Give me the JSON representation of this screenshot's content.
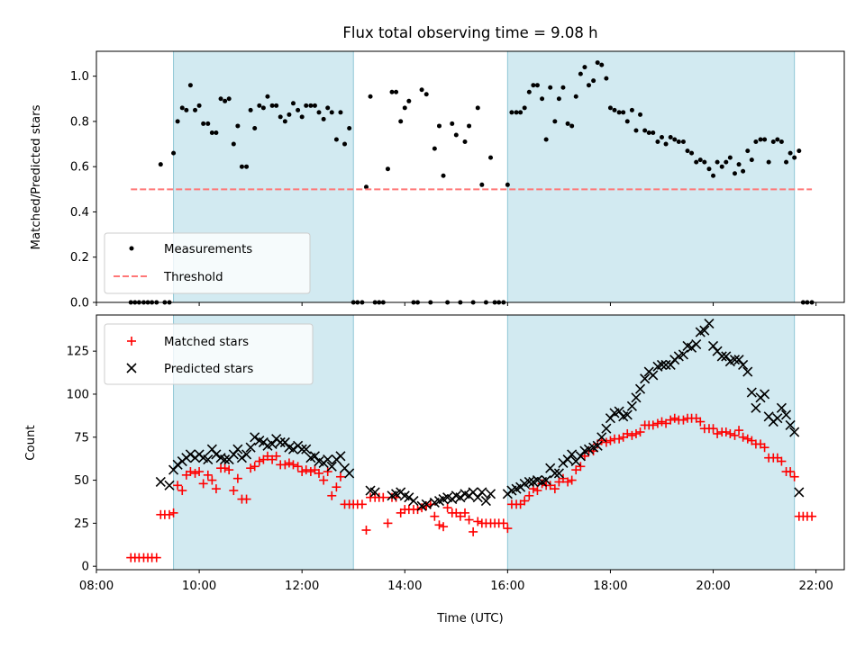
{
  "chart_data": [
    {
      "type": "scatter",
      "title": "Flux total observing time = 9.08 h",
      "xlabel": "",
      "ylabel": "Matched/Predicted stars",
      "xlim": [
        8.0,
        22.55
      ],
      "ylim": [
        0.0,
        1.11
      ],
      "yticks": [
        0.0,
        0.2,
        0.4,
        0.6,
        0.8,
        1.0
      ],
      "ytick_labels": [
        "0.0",
        "0.2",
        "0.4",
        "0.6",
        "0.8",
        "1.0"
      ],
      "grid": false,
      "legend_position": "lower-left",
      "shaded_intervals": [
        [
          9.5,
          13.0
        ],
        [
          16.0,
          21.58
        ]
      ],
      "shade_color": "#add8e6",
      "series": [
        {
          "name": "Measurements",
          "kind": "points",
          "color": "#000000",
          "x": [
            8.67,
            8.75,
            8.83,
            8.92,
            9.0,
            9.08,
            9.17,
            9.25,
            9.33,
            9.42,
            9.5,
            9.58,
            9.67,
            9.75,
            9.83,
            9.92,
            10.0,
            10.08,
            10.17,
            10.25,
            10.33,
            10.42,
            10.5,
            10.58,
            10.67,
            10.75,
            10.83,
            10.92,
            11.0,
            11.08,
            11.17,
            11.25,
            11.33,
            11.42,
            11.5,
            11.58,
            11.67,
            11.75,
            11.83,
            11.92,
            12.0,
            12.08,
            12.17,
            12.25,
            12.33,
            12.42,
            12.5,
            12.58,
            12.67,
            12.75,
            12.83,
            12.92,
            13.0,
            13.08,
            13.17,
            13.25,
            13.33,
            13.42,
            13.5,
            13.58,
            13.67,
            13.75,
            13.83,
            13.92,
            14.0,
            14.08,
            14.17,
            14.25,
            14.33,
            14.42,
            14.5,
            14.58,
            14.67,
            14.75,
            14.83,
            14.92,
            15.0,
            15.08,
            15.17,
            15.25,
            15.33,
            15.42,
            15.5,
            15.58,
            15.67,
            15.75,
            15.83,
            15.92,
            16.0,
            16.08,
            16.17,
            16.25,
            16.33,
            16.42,
            16.5,
            16.58,
            16.67,
            16.75,
            16.83,
            16.92,
            17.0,
            17.08,
            17.17,
            17.25,
            17.33,
            17.42,
            17.5,
            17.58,
            17.67,
            17.75,
            17.83,
            17.92,
            18.0,
            18.08,
            18.17,
            18.25,
            18.33,
            18.42,
            18.5,
            18.58,
            18.67,
            18.75,
            18.83,
            18.92,
            19.0,
            19.08,
            19.17,
            19.25,
            19.33,
            19.42,
            19.5,
            19.58,
            19.67,
            19.75,
            19.83,
            19.92,
            20.0,
            20.08,
            20.17,
            20.25,
            20.33,
            20.42,
            20.5,
            20.58,
            20.67,
            20.75,
            20.83,
            20.92,
            21.0,
            21.08,
            21.17,
            21.25,
            21.33,
            21.42,
            21.5,
            21.58,
            21.67,
            21.75,
            21.83,
            21.92
          ],
          "y": [
            0.0,
            0.0,
            0.0,
            0.0,
            0.0,
            0.0,
            0.0,
            0.61,
            0.0,
            0.0,
            0.66,
            0.8,
            0.86,
            0.85,
            0.96,
            0.85,
            0.87,
            0.79,
            0.79,
            0.75,
            0.75,
            0.9,
            0.89,
            0.9,
            0.7,
            0.78,
            0.6,
            0.6,
            0.85,
            0.77,
            0.87,
            0.86,
            0.91,
            0.87,
            0.87,
            0.82,
            0.8,
            0.83,
            0.88,
            0.85,
            0.82,
            0.87,
            0.87,
            0.87,
            0.84,
            0.81,
            0.86,
            0.84,
            0.72,
            0.84,
            0.7,
            0.77,
            0.0,
            0.0,
            0.0,
            0.51,
            0.91,
            0.0,
            0.0,
            0.0,
            0.59,
            0.93,
            0.93,
            0.8,
            0.86,
            0.89,
            0.0,
            0.0,
            0.94,
            0.92,
            0.0,
            0.68,
            0.78,
            0.56,
            0.0,
            0.79,
            0.74,
            0.0,
            0.71,
            0.78,
            0.0,
            0.86,
            0.52,
            0.0,
            0.64,
            0.0,
            0.0,
            0.0,
            0.52,
            0.84,
            0.84,
            0.84,
            0.86,
            0.93,
            0.96,
            0.96,
            0.9,
            0.72,
            0.95,
            0.8,
            0.9,
            0.95,
            0.79,
            0.78,
            0.91,
            1.01,
            1.04,
            0.96,
            0.98,
            1.06,
            1.05,
            0.99,
            0.86,
            0.85,
            0.84,
            0.84,
            0.8,
            0.85,
            0.76,
            0.83,
            0.76,
            0.75,
            0.75,
            0.71,
            0.73,
            0.7,
            0.73,
            0.72,
            0.71,
            0.71,
            0.67,
            0.66,
            0.62,
            0.63,
            0.62,
            0.59,
            0.56,
            0.62,
            0.6,
            0.62,
            0.64,
            0.57,
            0.61,
            0.58,
            0.67,
            0.63,
            0.71,
            0.72,
            0.72,
            0.62,
            0.71,
            0.72,
            0.71,
            0.62,
            0.66,
            0.64,
            0.67,
            0.0,
            0.0,
            0.0
          ]
        },
        {
          "name": "Threshold",
          "kind": "dashed-line",
          "color": "#ff7777",
          "x": [
            8.67,
            21.92
          ],
          "y": [
            0.5,
            0.5
          ]
        }
      ]
    },
    {
      "type": "scatter",
      "title": "",
      "xlabel": "Time (UTC)",
      "ylabel": "Count",
      "xlim": [
        8.0,
        22.55
      ],
      "ylim": [
        -2,
        146
      ],
      "xticks": [
        8,
        10,
        12,
        14,
        16,
        18,
        20,
        22
      ],
      "xtick_labels": [
        "08:00",
        "10:00",
        "12:00",
        "14:00",
        "16:00",
        "18:00",
        "20:00",
        "22:00"
      ],
      "yticks": [
        0,
        25,
        50,
        75,
        100,
        125
      ],
      "ytick_labels": [
        "0",
        "25",
        "50",
        "75",
        "100",
        "125"
      ],
      "grid": false,
      "legend_position": "upper-left",
      "shaded_intervals": [
        [
          9.5,
          13.0
        ],
        [
          16.0,
          21.58
        ]
      ],
      "shade_color": "#add8e6",
      "series": [
        {
          "name": "Matched stars",
          "kind": "plus",
          "color": "#ff0000",
          "x": [
            8.67,
            8.75,
            8.83,
            8.92,
            9.0,
            9.08,
            9.17,
            9.25,
            9.33,
            9.42,
            9.5,
            9.58,
            9.67,
            9.75,
            9.83,
            9.92,
            10.0,
            10.08,
            10.17,
            10.25,
            10.33,
            10.42,
            10.5,
            10.58,
            10.67,
            10.75,
            10.83,
            10.92,
            11.0,
            11.08,
            11.17,
            11.25,
            11.33,
            11.42,
            11.5,
            11.58,
            11.67,
            11.75,
            11.83,
            11.92,
            12.0,
            12.08,
            12.17,
            12.25,
            12.33,
            12.42,
            12.5,
            12.58,
            12.67,
            12.75,
            12.83,
            12.92,
            13.0,
            13.08,
            13.17,
            13.25,
            13.33,
            13.42,
            13.5,
            13.58,
            13.67,
            13.75,
            13.83,
            13.92,
            14.0,
            14.08,
            14.17,
            14.25,
            14.33,
            14.42,
            14.5,
            14.58,
            14.67,
            14.75,
            14.83,
            14.92,
            15.0,
            15.08,
            15.17,
            15.25,
            15.33,
            15.42,
            15.5,
            15.58,
            15.67,
            15.75,
            15.83,
            15.92,
            16.0,
            16.08,
            16.17,
            16.25,
            16.33,
            16.42,
            16.5,
            16.58,
            16.67,
            16.75,
            16.83,
            16.92,
            17.0,
            17.08,
            17.17,
            17.25,
            17.33,
            17.42,
            17.5,
            17.58,
            17.67,
            17.75,
            17.83,
            17.92,
            18.0,
            18.08,
            18.17,
            18.25,
            18.33,
            18.42,
            18.5,
            18.58,
            18.67,
            18.75,
            18.83,
            18.92,
            19.0,
            19.08,
            19.17,
            19.25,
            19.33,
            19.42,
            19.5,
            19.58,
            19.67,
            19.75,
            19.83,
            19.92,
            20.0,
            20.08,
            20.17,
            20.25,
            20.33,
            20.42,
            20.5,
            20.58,
            20.67,
            20.75,
            20.83,
            20.92,
            21.0,
            21.08,
            21.17,
            21.25,
            21.33,
            21.42,
            21.5,
            21.58,
            21.67,
            21.75,
            21.83,
            21.92
          ],
          "y": [
            5,
            5,
            5,
            5,
            5,
            5,
            5,
            30,
            30,
            30,
            31,
            47,
            44,
            53,
            55,
            54,
            55,
            48,
            53,
            50,
            45,
            57,
            57,
            56,
            44,
            51,
            39,
            39,
            57,
            58,
            61,
            62,
            64,
            62,
            64,
            59,
            59,
            60,
            59,
            58,
            55,
            56,
            55,
            56,
            54,
            50,
            55,
            41,
            46,
            52,
            36,
            36,
            36,
            36,
            36,
            21,
            40,
            40,
            40,
            40,
            25,
            40,
            40,
            31,
            33,
            33,
            33,
            33,
            34,
            35,
            36,
            29,
            24,
            23,
            34,
            31,
            31,
            29,
            31,
            27,
            20,
            26,
            25,
            25,
            25,
            25,
            25,
            25,
            22,
            36,
            36,
            36,
            38,
            41,
            45,
            44,
            48,
            47,
            47,
            45,
            49,
            51,
            49,
            50,
            56,
            58,
            64,
            67,
            67,
            71,
            73,
            72,
            73,
            74,
            74,
            75,
            77,
            76,
            77,
            78,
            82,
            82,
            82,
            83,
            84,
            83,
            85,
            86,
            85,
            85,
            86,
            86,
            86,
            84,
            80,
            80,
            80,
            77,
            78,
            78,
            77,
            76,
            79,
            75,
            74,
            73,
            71,
            71,
            69,
            63,
            63,
            63,
            61,
            55,
            55,
            52,
            29,
            29,
            29,
            29
          ]
        },
        {
          "name": "Predicted stars",
          "kind": "x",
          "color": "#000000",
          "x": [
            9.25,
            9.42,
            9.5,
            9.58,
            9.67,
            9.75,
            9.83,
            9.92,
            10.0,
            10.08,
            10.17,
            10.25,
            10.33,
            10.42,
            10.5,
            10.58,
            10.67,
            10.75,
            10.83,
            10.92,
            11.0,
            11.08,
            11.17,
            11.25,
            11.33,
            11.42,
            11.5,
            11.58,
            11.67,
            11.75,
            11.83,
            11.92,
            12.0,
            12.08,
            12.17,
            12.25,
            12.33,
            12.42,
            12.5,
            12.58,
            12.67,
            12.75,
            12.83,
            12.92,
            13.33,
            13.42,
            13.75,
            13.83,
            13.92,
            14.0,
            14.08,
            14.17,
            14.33,
            14.42,
            14.58,
            14.67,
            14.75,
            14.83,
            14.92,
            15.0,
            15.08,
            15.17,
            15.25,
            15.33,
            15.42,
            15.5,
            15.58,
            15.67,
            16.0,
            16.08,
            16.17,
            16.25,
            16.33,
            16.42,
            16.5,
            16.58,
            16.67,
            16.75,
            16.83,
            16.92,
            17.0,
            17.08,
            17.17,
            17.25,
            17.33,
            17.42,
            17.5,
            17.58,
            17.67,
            17.75,
            17.83,
            17.92,
            18.0,
            18.08,
            18.17,
            18.25,
            18.33,
            18.42,
            18.5,
            18.58,
            18.67,
            18.75,
            18.83,
            18.92,
            19.0,
            19.08,
            19.17,
            19.25,
            19.33,
            19.42,
            19.5,
            19.58,
            19.67,
            19.75,
            19.83,
            19.92,
            20.0,
            20.08,
            20.17,
            20.25,
            20.33,
            20.42,
            20.5,
            20.58,
            20.67,
            20.75,
            20.83,
            20.92,
            21.0,
            21.08,
            21.17,
            21.25,
            21.33,
            21.42,
            21.5,
            21.58,
            21.67
          ],
          "y": [
            49,
            47,
            56,
            59,
            61,
            63,
            65,
            63,
            65,
            63,
            62,
            68,
            65,
            63,
            62,
            62,
            65,
            68,
            63,
            65,
            69,
            75,
            73,
            72,
            70,
            71,
            74,
            72,
            72,
            69,
            68,
            70,
            68,
            68,
            63,
            64,
            61,
            60,
            62,
            58,
            62,
            64,
            57,
            54,
            44,
            43,
            41,
            42,
            43,
            41,
            40,
            38,
            35,
            36,
            37,
            38,
            39,
            40,
            39,
            41,
            40,
            42,
            41,
            43,
            40,
            43,
            38,
            42,
            42,
            44,
            45,
            46,
            48,
            49,
            49,
            50,
            49,
            50,
            57,
            54,
            54,
            60,
            62,
            65,
            61,
            64,
            67,
            68,
            69,
            70,
            75,
            80,
            86,
            89,
            90,
            87,
            88,
            93,
            98,
            103,
            109,
            113,
            111,
            116,
            117,
            117,
            117,
            120,
            122,
            123,
            128,
            127,
            129,
            136,
            137,
            141,
            128,
            125,
            122,
            122,
            119,
            120,
            120,
            117,
            113,
            101,
            92,
            98,
            100,
            87,
            84,
            86,
            92,
            88,
            82,
            78,
            43
          ]
        }
      ]
    }
  ]
}
